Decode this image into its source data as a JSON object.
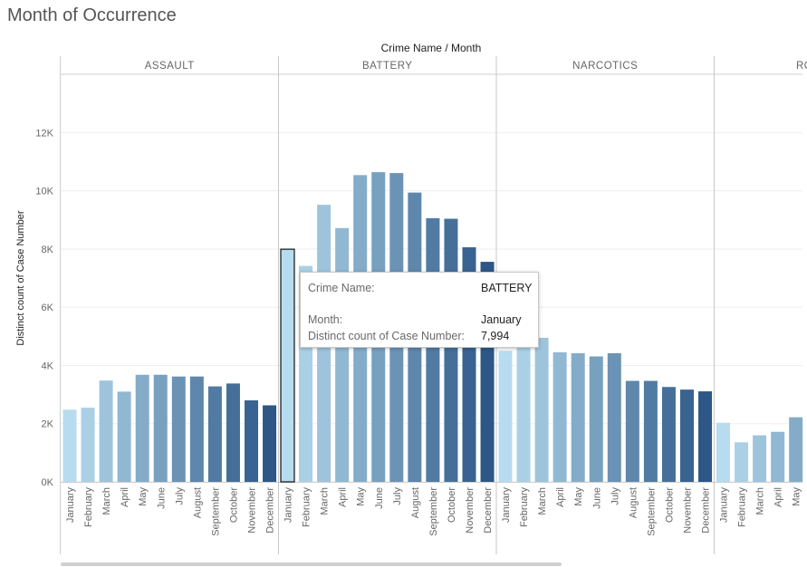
{
  "page_title": "Month of Occurrence",
  "chart_data": {
    "type": "bar",
    "header_title": "Crime Name  /  Month",
    "ylabel": "Distinct count of Case Number",
    "ylim": [
      0,
      13600
    ],
    "y_ticks": [
      0,
      2000,
      4000,
      6000,
      8000,
      10000,
      12000
    ],
    "y_tick_labels": [
      "0K",
      "2K",
      "4K",
      "6K",
      "8K",
      "10K",
      "12K"
    ],
    "grid": true,
    "palette": [
      "#b7dcef",
      "#2c5786"
    ],
    "panels": [
      {
        "name": "ASSAULT",
        "categories": [
          "January",
          "February",
          "March",
          "April",
          "May",
          "June",
          "July",
          "August",
          "September",
          "October",
          "November",
          "December"
        ],
        "values": [
          2480,
          2550,
          3480,
          3100,
          3680,
          3680,
          3620,
          3620,
          3280,
          3380,
          2800,
          2630
        ]
      },
      {
        "name": "BATTERY",
        "categories": [
          "January",
          "February",
          "March",
          "April",
          "May",
          "June",
          "July",
          "August",
          "September",
          "October",
          "November",
          "December"
        ],
        "values": [
          7994,
          7420,
          9520,
          8720,
          10540,
          10640,
          10610,
          9940,
          9060,
          9040,
          8060,
          7560
        ]
      },
      {
        "name": "NARCOTICS",
        "categories": [
          "January",
          "February",
          "March",
          "April",
          "May",
          "June",
          "July",
          "August",
          "September",
          "October",
          "November",
          "December"
        ],
        "values": [
          4500,
          4800,
          4950,
          4450,
          4420,
          4310,
          4420,
          3470,
          3470,
          3260,
          3170,
          3110
        ]
      },
      {
        "name": "ROBBERY",
        "categories": [
          "January",
          "February",
          "March",
          "April",
          "May"
        ],
        "values": [
          2030,
          1360,
          1600,
          1720,
          2220
        ]
      }
    ],
    "highlight": {
      "panel": 1,
      "index": 0
    }
  },
  "tooltip": {
    "crime_label": "Crime Name:",
    "crime_value": "BATTERY",
    "month_label": "Month:",
    "month_value": "January",
    "count_label": "Distinct count of Case Number:",
    "count_value": "7,994"
  }
}
